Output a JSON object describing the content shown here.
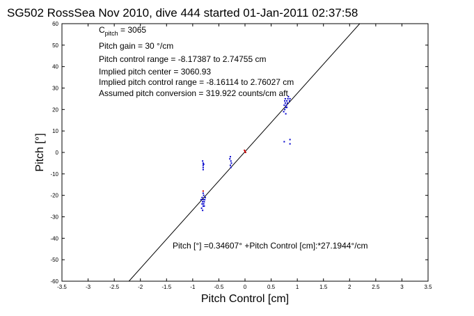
{
  "chart_data": {
    "type": "scatter",
    "title": "SG502 RossSea Nov 2010, dive 444 started 01-Jan-2011 02:37:58",
    "xlabel": "Pitch Control [cm]",
    "ylabel": "Pitch [°]",
    "xlim": [
      -3.5,
      3.5
    ],
    "ylim": [
      -60,
      60
    ],
    "xticks": [
      "-3.5",
      "-3",
      "-2.5",
      "-2",
      "-1.5",
      "-1",
      "-0.5",
      "0",
      "0.5",
      "1",
      "1.5",
      "2",
      "2.5",
      "3",
      "3.5"
    ],
    "yticks": [
      "60",
      "50",
      "40",
      "30",
      "20",
      "10",
      "0",
      "-10",
      "-20",
      "-30",
      "-40",
      "-50",
      "-60"
    ],
    "grid": false,
    "annotations": {
      "c_pitch": {
        "main": "C",
        "sub": "pitch",
        "rest": " = 3065"
      },
      "lines": [
        "Pitch gain = 30 °/cm",
        "Pitch control range = -8.17387 to 2.74755 cm",
        "Implied pitch center = 3060.93",
        "Implied pitch control range = -8.16114 to 2.76027 cm",
        "Assumed pitch conversion = 319.922 counts/cm aft"
      ],
      "fit_equation": "Pitch [°] =0.34607° +Pitch Control [cm]:*27.1944°/cm"
    },
    "fit_line": {
      "intercept": 0.34607,
      "slope": 27.1944,
      "color": "#000000"
    },
    "series": [
      {
        "color": "#0000cc",
        "points": [
          [
            -0.8,
            -6
          ],
          [
            -0.8,
            -5
          ],
          [
            -0.8,
            -7
          ],
          [
            -0.81,
            -4
          ],
          [
            -0.8,
            -8
          ],
          [
            -0.79,
            -5.5
          ],
          [
            -0.82,
            -21
          ],
          [
            -0.8,
            -22
          ],
          [
            -0.78,
            -23
          ],
          [
            -0.79,
            -24
          ],
          [
            -0.81,
            -23
          ],
          [
            -0.77,
            -22
          ],
          [
            -0.8,
            -25
          ],
          [
            -0.83,
            -26
          ],
          [
            -0.79,
            -20
          ],
          [
            -0.81,
            -27
          ],
          [
            -0.76,
            -21
          ],
          [
            -0.78,
            -25
          ],
          [
            -0.84,
            -22
          ],
          [
            -0.8,
            -19
          ],
          [
            -0.82,
            -24
          ],
          [
            -0.28,
            -2
          ],
          [
            -0.27,
            -4
          ],
          [
            -0.28,
            -6
          ],
          [
            -0.26,
            -5
          ],
          [
            -0.27,
            -7
          ],
          [
            -0.29,
            -3
          ],
          [
            0.75,
            22
          ],
          [
            0.77,
            23
          ],
          [
            0.78,
            21
          ],
          [
            0.8,
            24
          ],
          [
            0.82,
            25
          ],
          [
            0.85,
            24
          ],
          [
            0.76,
            20
          ],
          [
            0.79,
            22
          ],
          [
            0.81,
            23
          ],
          [
            0.74,
            19
          ],
          [
            0.83,
            26
          ],
          [
            0.78,
            18
          ],
          [
            0.76,
            24
          ],
          [
            0.8,
            21
          ],
          [
            0.86,
            25
          ],
          [
            0.77,
            25
          ],
          [
            0.75,
            5
          ],
          [
            0.86,
            6
          ],
          [
            0.86,
            4
          ]
        ]
      },
      {
        "color": "#cc0000",
        "points": [
          [
            0.0,
            0.5
          ],
          [
            0.01,
            0.0
          ],
          [
            -0.01,
            1.0
          ],
          [
            -0.8,
            -18
          ]
        ]
      }
    ]
  }
}
